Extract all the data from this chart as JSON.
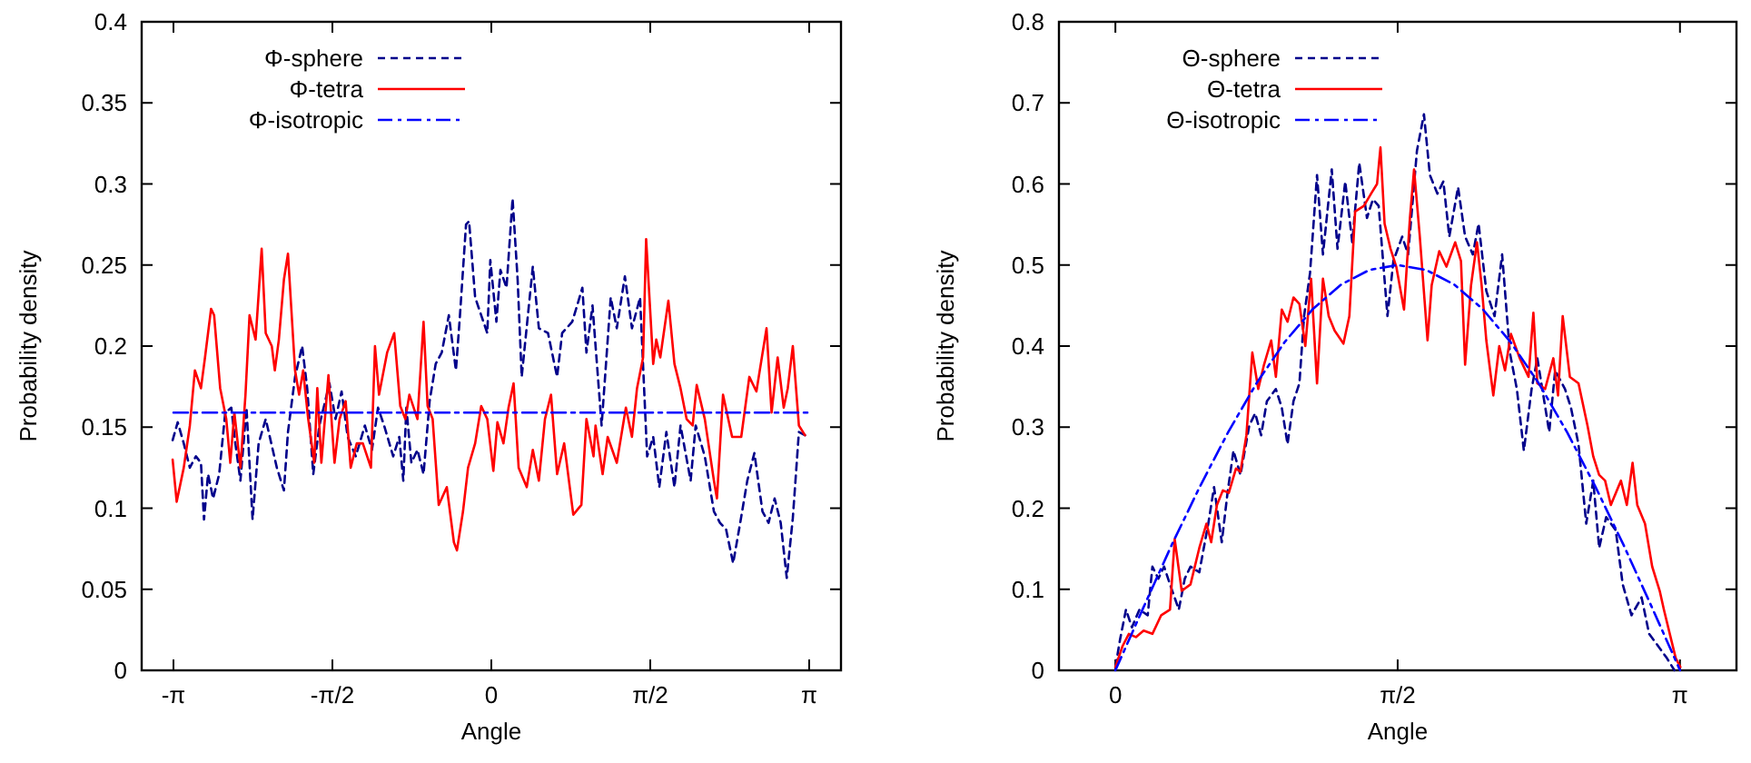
{
  "chart_data": [
    {
      "type": "line",
      "xlabel": "Angle",
      "ylabel": "Probability density",
      "xlim": [
        -3.456,
        3.456
      ],
      "ylim": [
        0,
        0.4
      ],
      "xticks": [
        {
          "value": -3.1416,
          "label": "-π"
        },
        {
          "value": -1.5708,
          "label": "-π/2"
        },
        0,
        {
          "value": 1.5708,
          "label": "π/2"
        },
        {
          "value": 3.1416,
          "label": "π"
        }
      ],
      "yticks": [
        0,
        0.05,
        0.1,
        0.15,
        0.2,
        0.25,
        0.3,
        0.35,
        0.4
      ],
      "legend": "top left",
      "grid": false,
      "series": [
        {
          "name": "Φ-sphere",
          "color": "#00008b",
          "line_style": "dashed",
          "x": [
            -3.15,
            -3.1,
            -3.04,
            -2.98,
            -2.92,
            -2.87,
            -2.84,
            -2.8,
            -2.75,
            -2.69,
            -2.63,
            -2.57,
            -2.53,
            -2.48,
            -2.42,
            -2.36,
            -2.3,
            -2.23,
            -2.12,
            -2.05,
            -2.01,
            -1.94,
            -1.87,
            -1.82,
            -1.76,
            -1.7,
            -1.6,
            -1.54,
            -1.48,
            -1.42,
            -1.34,
            -1.25,
            -1.18,
            -1.12,
            -1.06,
            -0.97,
            -0.91,
            -0.87,
            -0.84,
            -0.79,
            -0.73,
            -0.67,
            -0.61,
            -0.55,
            -0.49,
            -0.42,
            -0.35,
            -0.31,
            -0.25,
            -0.22,
            -0.16,
            -0.1,
            -0.04,
            -0.01,
            0.05,
            0.09,
            0.15,
            0.21,
            0.26,
            0.3,
            0.41,
            0.47,
            0.56,
            0.65,
            0.7,
            0.8,
            0.9,
            0.94,
            1.0,
            1.09,
            1.18,
            1.24,
            1.32,
            1.39,
            1.47,
            1.54,
            1.6,
            1.66,
            1.73,
            1.81,
            1.87,
            1.97,
            2.02,
            2.11,
            2.2,
            2.26,
            2.32,
            2.39,
            2.46,
            2.53,
            2.6,
            2.68,
            2.74,
            2.8,
            2.86,
            2.92,
            2.98,
            3.04,
            3.1
          ],
          "values": [
            0.142,
            0.153,
            0.14,
            0.125,
            0.132,
            0.128,
            0.093,
            0.121,
            0.106,
            0.121,
            0.159,
            0.162,
            0.14,
            0.117,
            0.162,
            0.093,
            0.14,
            0.155,
            0.125,
            0.111,
            0.147,
            0.181,
            0.2,
            0.174,
            0.121,
            0.151,
            0.177,
            0.155,
            0.172,
            0.144,
            0.132,
            0.151,
            0.136,
            0.162,
            0.151,
            0.132,
            0.144,
            0.117,
            0.162,
            0.128,
            0.136,
            0.121,
            0.166,
            0.189,
            0.196,
            0.219,
            0.185,
            0.219,
            0.275,
            0.277,
            0.23,
            0.219,
            0.208,
            0.253,
            0.215,
            0.247,
            0.236,
            0.291,
            0.241,
            0.181,
            0.249,
            0.211,
            0.208,
            0.181,
            0.208,
            0.215,
            0.236,
            0.196,
            0.225,
            0.151,
            0.23,
            0.211,
            0.243,
            0.211,
            0.23,
            0.132,
            0.144,
            0.113,
            0.147,
            0.113,
            0.151,
            0.117,
            0.151,
            0.132,
            0.098,
            0.091,
            0.087,
            0.066,
            0.091,
            0.117,
            0.134,
            0.098,
            0.091,
            0.106,
            0.091,
            0.057,
            0.094,
            0.147,
            0.145
          ]
        },
        {
          "name": "Φ-tetra",
          "color": "#ff0000",
          "line_style": "solid",
          "x": [
            -3.15,
            -3.11,
            -3.04,
            -2.98,
            -2.93,
            -2.87,
            -2.83,
            -2.77,
            -2.74,
            -2.68,
            -2.62,
            -2.58,
            -2.54,
            -2.48,
            -2.43,
            -2.39,
            -2.33,
            -2.27,
            -2.23,
            -2.17,
            -2.14,
            -2.1,
            -2.05,
            -2.01,
            -1.94,
            -1.9,
            -1.86,
            -1.81,
            -1.75,
            -1.72,
            -1.68,
            -1.61,
            -1.55,
            -1.5,
            -1.44,
            -1.39,
            -1.33,
            -1.27,
            -1.19,
            -1.15,
            -1.11,
            -1.03,
            -0.96,
            -0.9,
            -0.85,
            -0.81,
            -0.73,
            -0.67,
            -0.63,
            -0.58,
            -0.52,
            -0.44,
            -0.37,
            -0.34,
            -0.28,
            -0.23,
            -0.16,
            -0.1,
            -0.04,
            0.02,
            0.06,
            0.12,
            0.17,
            0.22,
            0.27,
            0.35,
            0.41,
            0.47,
            0.53,
            0.59,
            0.65,
            0.72,
            0.81,
            0.89,
            0.94,
            1.01,
            1.03,
            1.1,
            1.15,
            1.24,
            1.33,
            1.39,
            1.44,
            1.5,
            1.53,
            1.6,
            1.63,
            1.67,
            1.75,
            1.81,
            1.87,
            1.93,
            1.99,
            2.03,
            2.11,
            2.2,
            2.23,
            2.29,
            2.38,
            2.47,
            2.55,
            2.62,
            2.72,
            2.77,
            2.83,
            2.89,
            2.93,
            2.98,
            3.04,
            3.1
          ],
          "values": [
            0.13,
            0.104,
            0.125,
            0.151,
            0.185,
            0.174,
            0.193,
            0.223,
            0.219,
            0.174,
            0.155,
            0.128,
            0.159,
            0.125,
            0.17,
            0.219,
            0.204,
            0.26,
            0.208,
            0.2,
            0.185,
            0.204,
            0.241,
            0.257,
            0.185,
            0.17,
            0.185,
            0.155,
            0.128,
            0.174,
            0.128,
            0.182,
            0.128,
            0.155,
            0.166,
            0.125,
            0.14,
            0.14,
            0.125,
            0.2,
            0.17,
            0.196,
            0.208,
            0.163,
            0.155,
            0.17,
            0.155,
            0.215,
            0.163,
            0.155,
            0.102,
            0.113,
            0.079,
            0.074,
            0.098,
            0.125,
            0.14,
            0.163,
            0.155,
            0.123,
            0.153,
            0.14,
            0.162,
            0.177,
            0.125,
            0.113,
            0.136,
            0.117,
            0.155,
            0.17,
            0.121,
            0.14,
            0.096,
            0.102,
            0.155,
            0.132,
            0.151,
            0.121,
            0.144,
            0.128,
            0.162,
            0.144,
            0.174,
            0.193,
            0.266,
            0.189,
            0.204,
            0.193,
            0.228,
            0.189,
            0.174,
            0.155,
            0.151,
            0.176,
            0.155,
            0.117,
            0.106,
            0.17,
            0.144,
            0.144,
            0.181,
            0.172,
            0.211,
            0.159,
            0.193,
            0.162,
            0.174,
            0.2,
            0.151,
            0.145
          ]
        },
        {
          "name": "Φ-isotropic",
          "color": "#0000ff",
          "line_style": "dashdot",
          "x": [
            -3.1416,
            3.1416
          ],
          "values": [
            0.159,
            0.159
          ]
        }
      ]
    },
    {
      "type": "line",
      "xlabel": "Angle",
      "ylabel": "Probability density",
      "xlim": [
        -0.314,
        3.456
      ],
      "ylim": [
        0,
        0.8
      ],
      "xticks": [
        0,
        {
          "value": 1.5708,
          "label": "π/2"
        },
        {
          "value": 3.1416,
          "label": "π"
        }
      ],
      "yticks": [
        0,
        0.1,
        0.2,
        0.3,
        0.4,
        0.5,
        0.6,
        0.7,
        0.8
      ],
      "legend": "top left",
      "grid": false,
      "series": [
        {
          "name": "Θ-sphere",
          "color": "#00008b",
          "line_style": "dashed",
          "x": [
            0,
            0.026,
            0.059,
            0.092,
            0.134,
            0.18,
            0.206,
            0.239,
            0.271,
            0.304,
            0.353,
            0.386,
            0.418,
            0.467,
            0.517,
            0.549,
            0.592,
            0.624,
            0.657,
            0.696,
            0.745,
            0.778,
            0.811,
            0.843,
            0.893,
            0.926,
            0.958,
            0.991,
            1.024,
            1.05,
            1.083,
            1.122,
            1.155,
            1.204,
            1.236,
            1.279,
            1.318,
            1.357,
            1.4,
            1.433,
            1.465,
            1.514,
            1.547,
            1.596,
            1.629,
            1.678,
            1.717,
            1.75,
            1.792,
            1.825,
            1.858,
            1.907,
            1.946,
            1.989,
            2.021,
            2.064,
            2.11,
            2.152,
            2.195,
            2.234,
            2.273,
            2.316,
            2.348,
            2.414,
            2.447,
            2.502,
            2.535,
            2.577,
            2.62,
            2.659,
            2.692,
            2.731,
            2.784,
            2.823,
            2.872,
            2.928,
            2.97,
            3.02,
            3.069,
            3.111
          ],
          "values": [
            0.004,
            0.038,
            0.075,
            0.053,
            0.075,
            0.068,
            0.128,
            0.113,
            0.128,
            0.106,
            0.075,
            0.113,
            0.128,
            0.121,
            0.181,
            0.226,
            0.158,
            0.219,
            0.271,
            0.241,
            0.302,
            0.317,
            0.29,
            0.332,
            0.347,
            0.324,
            0.279,
            0.332,
            0.354,
            0.437,
            0.49,
            0.611,
            0.513,
            0.618,
            0.52,
            0.603,
            0.528,
            0.626,
            0.558,
            0.581,
            0.573,
            0.437,
            0.505,
            0.535,
            0.513,
            0.641,
            0.686,
            0.611,
            0.588,
            0.603,
            0.535,
            0.596,
            0.535,
            0.513,
            0.551,
            0.468,
            0.437,
            0.513,
            0.392,
            0.347,
            0.271,
            0.347,
            0.385,
            0.294,
            0.37,
            0.347,
            0.324,
            0.279,
            0.181,
            0.234,
            0.151,
            0.189,
            0.173,
            0.106,
            0.068,
            0.09,
            0.045,
            0.03,
            0.015,
            0
          ]
        },
        {
          "name": "Θ-tetra",
          "color": "#ff0000",
          "line_style": "solid",
          "x": [
            0,
            0.04,
            0.075,
            0.114,
            0.157,
            0.206,
            0.255,
            0.304,
            0.33,
            0.369,
            0.418,
            0.467,
            0.507,
            0.533,
            0.565,
            0.598,
            0.631,
            0.671,
            0.696,
            0.729,
            0.762,
            0.795,
            0.827,
            0.867,
            0.893,
            0.926,
            0.958,
            0.991,
            1.024,
            1.057,
            1.089,
            1.122,
            1.155,
            1.187,
            1.22,
            1.269,
            1.302,
            1.334,
            1.383,
            1.423,
            1.456,
            1.475,
            1.498,
            1.531,
            1.563,
            1.606,
            1.639,
            1.662,
            1.694,
            1.737,
            1.76,
            1.802,
            1.842,
            1.891,
            1.923,
            1.946,
            1.979,
            2.012,
            2.038,
            2.064,
            2.103,
            2.136,
            2.168,
            2.201,
            2.25,
            2.299,
            2.326,
            2.348,
            2.391,
            2.437,
            2.463,
            2.489,
            2.529,
            2.577,
            2.627,
            2.659,
            2.692,
            2.725,
            2.757,
            2.813,
            2.846,
            2.878,
            2.904,
            2.947,
            2.987,
            3.029,
            3.052,
            3.085,
            3.118,
            3.144
          ],
          "values": [
            0.004,
            0.03,
            0.045,
            0.041,
            0.049,
            0.045,
            0.068,
            0.075,
            0.162,
            0.098,
            0.106,
            0.151,
            0.181,
            0.158,
            0.204,
            0.222,
            0.219,
            0.249,
            0.245,
            0.29,
            0.392,
            0.347,
            0.377,
            0.407,
            0.362,
            0.445,
            0.43,
            0.46,
            0.452,
            0.4,
            0.483,
            0.354,
            0.483,
            0.437,
            0.419,
            0.403,
            0.437,
            0.566,
            0.573,
            0.588,
            0.6,
            0.645,
            0.551,
            0.52,
            0.498,
            0.445,
            0.558,
            0.618,
            0.535,
            0.407,
            0.475,
            0.517,
            0.498,
            0.528,
            0.505,
            0.377,
            0.475,
            0.528,
            0.475,
            0.407,
            0.339,
            0.4,
            0.37,
            0.415,
            0.385,
            0.362,
            0.441,
            0.354,
            0.347,
            0.385,
            0.339,
            0.437,
            0.362,
            0.354,
            0.302,
            0.264,
            0.241,
            0.234,
            0.204,
            0.234,
            0.204,
            0.256,
            0.204,
            0.181,
            0.128,
            0.098,
            0.075,
            0.045,
            0.015,
            0.004
          ]
        },
        {
          "name": "Θ-isotropic",
          "color": "#0000ff",
          "line_style": "dashdot",
          "x": [
            0,
            0.157,
            0.314,
            0.471,
            0.628,
            0.785,
            0.942,
            1.1,
            1.257,
            1.414,
            1.571,
            1.728,
            1.885,
            2.042,
            2.199,
            2.356,
            2.513,
            2.67,
            2.827,
            2.985,
            3.142
          ],
          "values": [
            0,
            0.078,
            0.155,
            0.227,
            0.294,
            0.354,
            0.405,
            0.446,
            0.476,
            0.494,
            0.5,
            0.494,
            0.476,
            0.446,
            0.405,
            0.354,
            0.294,
            0.227,
            0.155,
            0.078,
            0
          ]
        }
      ]
    }
  ]
}
